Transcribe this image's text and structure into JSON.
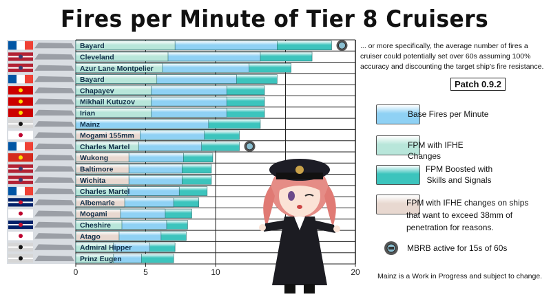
{
  "title": "Fires per Minute of Tier 8 Cruisers",
  "description": "... or more specifically, the average number of fires a cruiser could potentially set over 60s assuming 100% accuracy and discounting the target ship's fire resistance.",
  "patch_label": "Patch 0.9.2",
  "note": "Mainz is a Work in Progress and subject to change.",
  "colors": {
    "base": "#8fd1f4",
    "ifhe": "#b8e6da",
    "boosted": "#3cc4bd",
    "ifhe_exceed": "#e8d8d0",
    "grid": "#222222"
  },
  "legend": [
    {
      "key": "base",
      "label": "Base Fires per Minute"
    },
    {
      "key": "ifhe",
      "label": "FPM with IFHE Changes"
    },
    {
      "key": "boosted",
      "label": "FPM Boosted with Skills and Signals"
    },
    {
      "key": "ifhe_exceed",
      "label": "FPM with IFHE changes on ships that want to exceed 38mm of penetration for reasons."
    },
    {
      "key": "mbrb",
      "label": "MBRB active for 15s of 60s",
      "icon": "mbrb-icon"
    }
  ],
  "chart_data": {
    "type": "bar",
    "orientation": "horizontal",
    "stacked": true,
    "xlim": [
      0,
      20
    ],
    "xticks": [
      0,
      5,
      10,
      15,
      20
    ],
    "grid": true,
    "legend_placement": "right",
    "categories": [
      "Bayard",
      "Cleveland",
      "Azur Lane Montpelier",
      "Bayard",
      "Chapayev",
      "Mikhail Kutuzov",
      "Irian",
      "Mainz",
      "Mogami 155mm",
      "Charles Martel",
      "Wukong",
      "Baltimore",
      "Wichita",
      "Charles Martel",
      "Albemarle",
      "Mogami",
      "Cheshire",
      "Atago",
      "Admiral Hipper",
      "Prinz Eugen"
    ],
    "mbrb": [
      true,
      false,
      false,
      false,
      false,
      false,
      false,
      false,
      false,
      true,
      false,
      false,
      false,
      false,
      false,
      false,
      false,
      false,
      false,
      false
    ],
    "segments": [
      [
        {
          "k": "ifhe",
          "v": 7.1
        },
        {
          "k": "base",
          "v": 14.4
        },
        {
          "k": "boosted",
          "v": 18.3
        }
      ],
      [
        {
          "k": "ifhe",
          "v": 6.6
        },
        {
          "k": "base",
          "v": 13.2
        },
        {
          "k": "boosted",
          "v": 16.9
        }
      ],
      [
        {
          "k": "ifhe",
          "v": 6.2
        },
        {
          "k": "base",
          "v": 12.4
        },
        {
          "k": "boosted",
          "v": 15.4
        }
      ],
      [
        {
          "k": "ifhe",
          "v": 5.8
        },
        {
          "k": "base",
          "v": 11.5
        },
        {
          "k": "boosted",
          "v": 14.4
        }
      ],
      [
        {
          "k": "ifhe",
          "v": 5.4
        },
        {
          "k": "base",
          "v": 10.8
        },
        {
          "k": "boosted",
          "v": 13.5
        }
      ],
      [
        {
          "k": "ifhe",
          "v": 5.4
        },
        {
          "k": "base",
          "v": 10.8
        },
        {
          "k": "boosted",
          "v": 13.5
        }
      ],
      [
        {
          "k": "ifhe",
          "v": 5.4
        },
        {
          "k": "base",
          "v": 10.8
        },
        {
          "k": "boosted",
          "v": 13.5
        }
      ],
      [
        {
          "k": "base",
          "v": 9.5
        },
        {
          "k": "boosted",
          "v": 13.2
        }
      ],
      [
        {
          "k": "ifhe_exceed",
          "v": 4.6
        },
        {
          "k": "base",
          "v": 9.2
        },
        {
          "k": "boosted",
          "v": 11.7
        }
      ],
      [
        {
          "k": "ifhe",
          "v": 4.5
        },
        {
          "k": "base",
          "v": 9.0
        },
        {
          "k": "boosted",
          "v": 11.7
        }
      ],
      [
        {
          "k": "ifhe_exceed",
          "v": 3.8
        },
        {
          "k": "base",
          "v": 7.7
        },
        {
          "k": "boosted",
          "v": 9.8
        }
      ],
      [
        {
          "k": "ifhe_exceed",
          "v": 3.8
        },
        {
          "k": "base",
          "v": 7.6
        },
        {
          "k": "boosted",
          "v": 9.7
        }
      ],
      [
        {
          "k": "ifhe_exceed",
          "v": 3.8
        },
        {
          "k": "base",
          "v": 7.6
        },
        {
          "k": "boosted",
          "v": 9.7
        }
      ],
      [
        {
          "k": "ifhe",
          "v": 3.7
        },
        {
          "k": "base",
          "v": 7.4
        },
        {
          "k": "boosted",
          "v": 9.4
        }
      ],
      [
        {
          "k": "ifhe_exceed",
          "v": 3.5
        },
        {
          "k": "base",
          "v": 7.0
        },
        {
          "k": "boosted",
          "v": 8.8
        }
      ],
      [
        {
          "k": "ifhe_exceed",
          "v": 3.2
        },
        {
          "k": "base",
          "v": 6.4
        },
        {
          "k": "boosted",
          "v": 8.3
        }
      ],
      [
        {
          "k": "ifhe",
          "v": 3.3
        },
        {
          "k": "base",
          "v": 6.5
        },
        {
          "k": "boosted",
          "v": 8.0
        }
      ],
      [
        {
          "k": "ifhe_exceed",
          "v": 3.1
        },
        {
          "k": "base",
          "v": 6.1
        },
        {
          "k": "boosted",
          "v": 7.9
        }
      ],
      [
        {
          "k": "ifhe",
          "v": 2.7
        },
        {
          "k": "base",
          "v": 5.3
        },
        {
          "k": "boosted",
          "v": 7.1
        }
      ],
      [
        {
          "k": "ifhe",
          "v": 2.7
        },
        {
          "k": "base",
          "v": 4.7
        },
        {
          "k": "boosted",
          "v": 7.0
        }
      ]
    ],
    "flags": [
      "france",
      "usa",
      "usa",
      "france",
      "ussr",
      "ussr",
      "ussr",
      "germany",
      "japan",
      "france",
      "china",
      "usa",
      "usa",
      "france",
      "uk",
      "japan",
      "uk",
      "japan",
      "germany",
      "germany"
    ]
  }
}
